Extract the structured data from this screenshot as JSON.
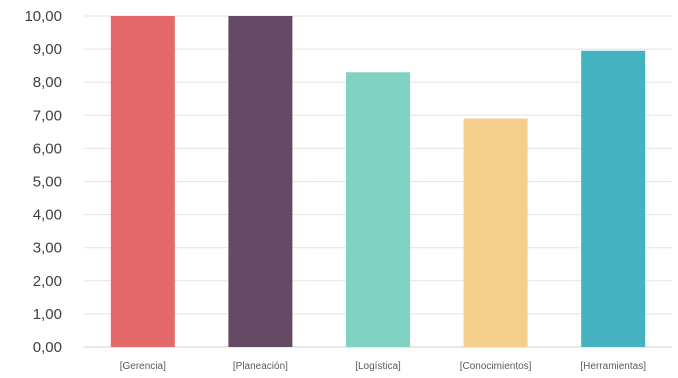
{
  "chart_data": {
    "type": "bar",
    "title": "",
    "xlabel": "",
    "ylabel": "",
    "categories": [
      "[Gerencia]",
      "[Planeación]",
      "[Logística]",
      "[Conocimientos]",
      "[Herramientas]"
    ],
    "values": [
      10.0,
      10.0,
      8.3,
      6.9,
      8.95
    ],
    "colors": [
      "#e4696b",
      "#654a65",
      "#80d2c3",
      "#f3ce8c",
      "#45b2c1"
    ],
    "ylim": [
      0,
      10
    ],
    "yticks": [
      "0,00",
      "1,00",
      "2,00",
      "3,00",
      "4,00",
      "5,00",
      "6,00",
      "7,00",
      "8,00",
      "9,00",
      "10,00"
    ],
    "grid": true,
    "legend": "none"
  }
}
